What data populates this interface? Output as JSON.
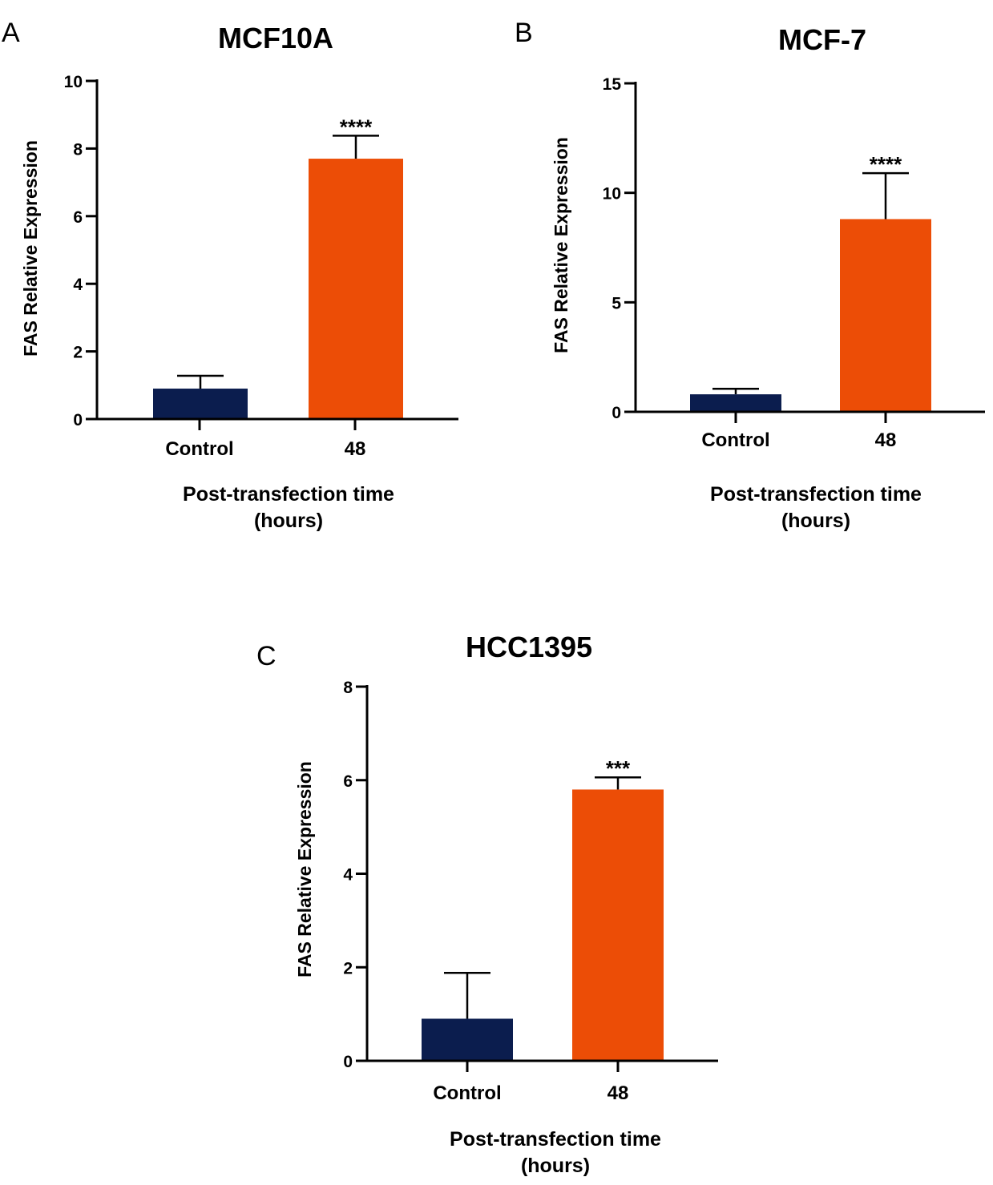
{
  "colors": {
    "control": "#0b1d4e",
    "treatment": "#ec4d06",
    "axis": "#000000"
  },
  "chart_data": [
    {
      "type": "bar",
      "panel": "A",
      "title": "MCF10A",
      "categories": [
        "Control",
        "48"
      ],
      "values": [
        0.9,
        7.7
      ],
      "errors_upper": [
        1.28,
        8.38
      ],
      "significance": [
        "",
        "****"
      ],
      "xlabel": [
        "Post-transfection time",
        "(hours)"
      ],
      "ylabel": "FAS Relative Expression",
      "ylim": [
        0,
        10
      ],
      "yticks": [
        0,
        2,
        4,
        6,
        8,
        10
      ]
    },
    {
      "type": "bar",
      "panel": "B",
      "title": "MCF-7",
      "categories": [
        "Control",
        "48"
      ],
      "values": [
        0.8,
        8.8
      ],
      "errors_upper": [
        1.05,
        10.9
      ],
      "significance": [
        "",
        "****"
      ],
      "xlabel": [
        "Post-transfection time",
        "(hours)"
      ],
      "ylabel": "FAS Relative Expression",
      "ylim": [
        0,
        15
      ],
      "yticks": [
        0,
        5,
        10,
        15
      ]
    },
    {
      "type": "bar",
      "panel": "C",
      "title": "HCC1395",
      "categories": [
        "Control",
        "48"
      ],
      "values": [
        0.9,
        5.8
      ],
      "errors_upper": [
        1.88,
        6.06
      ],
      "significance": [
        "",
        "***"
      ],
      "xlabel": [
        "Post-transfection time",
        "(hours)"
      ],
      "ylabel": "FAS Relative Expression",
      "ylim": [
        0,
        8
      ],
      "yticks": [
        0,
        2,
        4,
        6,
        8
      ]
    }
  ]
}
